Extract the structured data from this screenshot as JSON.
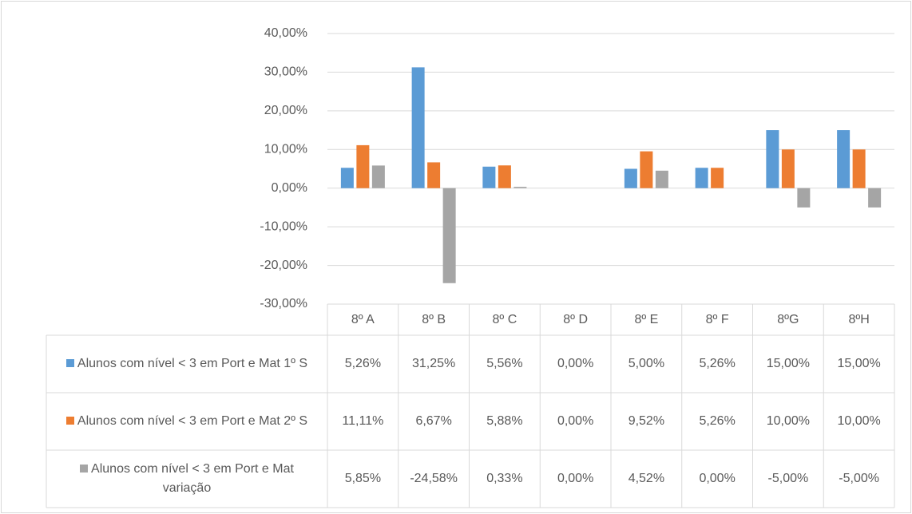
{
  "chart_data": {
    "type": "bar",
    "categories": [
      "8º A",
      "8º B",
      "8º C",
      "8º D",
      "8º E",
      "8º F",
      "8ºG",
      "8ºH"
    ],
    "series": [
      {
        "name": "Alunos com nível < 3 em Port e Mat 1º S",
        "color": "#5b9bd5",
        "values": [
          5.26,
          31.25,
          5.56,
          0,
          5,
          5.26,
          15,
          15
        ],
        "value_labels": [
          "5,26%",
          "31,25%",
          "5,56%",
          "0,00%",
          "5,00%",
          "5,26%",
          "15,00%",
          "15,00%"
        ]
      },
      {
        "name": "Alunos com nível < 3 em Port e Mat 2º S",
        "color": "#ed7d31",
        "values": [
          11.11,
          6.67,
          5.88,
          0,
          9.52,
          5.26,
          10,
          10
        ],
        "value_labels": [
          "11,11%",
          "6,67%",
          "5,88%",
          "0,00%",
          "9,52%",
          "5,26%",
          "10,00%",
          "10,00%"
        ]
      },
      {
        "name": "Alunos com nível < 3 em Port e Mat variação",
        "color": "#a5a5a5",
        "values": [
          5.85,
          -24.58,
          0.33,
          0,
          4.52,
          0,
          -5,
          -5
        ],
        "value_labels": [
          "5,85%",
          "-24,58%",
          "0,33%",
          "0,00%",
          "4,52%",
          "0,00%",
          "-5,00%",
          "-5,00%"
        ]
      }
    ],
    "ylim": [
      -30,
      40
    ],
    "yticks": [
      {
        "value": -30,
        "label": "-30,00%"
      },
      {
        "value": -20,
        "label": "-20,00%"
      },
      {
        "value": -10,
        "label": "-10,00%"
      },
      {
        "value": 0,
        "label": "0,00%"
      },
      {
        "value": 10,
        "label": "10,00%"
      },
      {
        "value": 20,
        "label": "20,00%"
      },
      {
        "value": 30,
        "label": "30,00%"
      },
      {
        "value": 40,
        "label": "40,00%"
      }
    ],
    "grid": true
  }
}
